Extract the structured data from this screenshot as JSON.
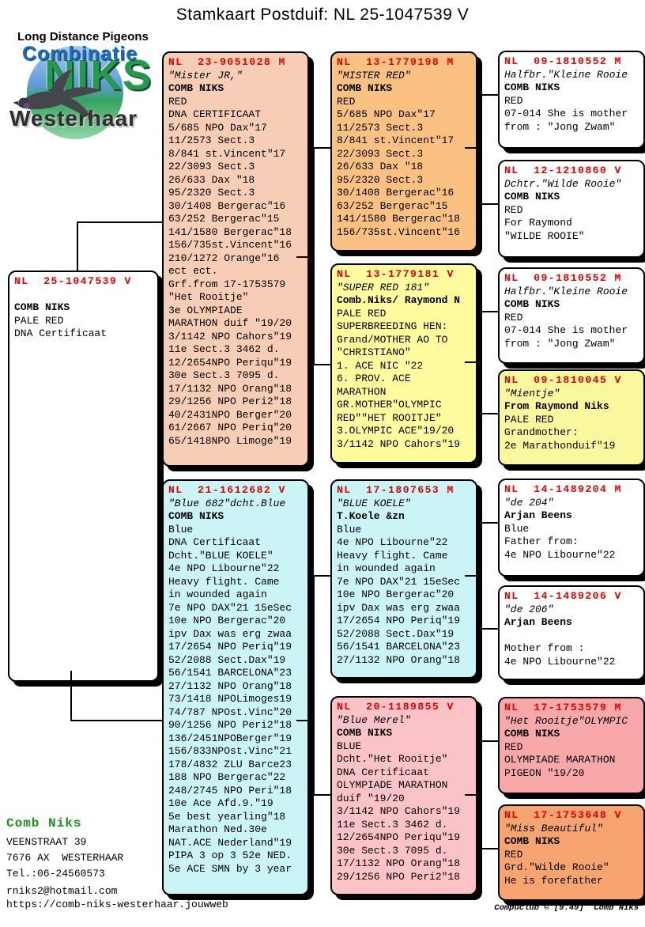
{
  "title": "Stamkaart Postduif: NL  25-1047539 V",
  "logo": {
    "tagline": "Long Distance Pigeons",
    "word1": "Combinatie",
    "word2": "NIKS",
    "word3": "Westerhaar",
    "pigeon_icon": "pigeon-icon"
  },
  "colors": {
    "ring_red": "#dd0000",
    "owner_green": "#1e8f1e",
    "peach": "#f8cdb5",
    "orange": "#fac183",
    "yellow": "#fdfb9e",
    "cyan": "#cbf4f6",
    "pink": "#fbc2c7",
    "salmon": "#f8a8a9",
    "deep_orange": "#f8a470",
    "white": "#ffffff"
  },
  "pedigree": {
    "boxes": [
      {
        "id": "father",
        "ring": "NL  23-9051028 M",
        "bg": "#f8cdb5",
        "lines": [
          {
            "t": "\"Mister JR,\"",
            "s": "i"
          },
          {
            "t": "COMB NIKS",
            "s": "b"
          },
          {
            "t": "RED",
            "s": ""
          },
          {
            "t": "DNA CERTIFICAAT",
            "s": ""
          },
          {
            "t": "5/685 NPO Dax\"17",
            "s": ""
          },
          {
            "t": "11/2573 Sect.3",
            "s": ""
          },
          {
            "t": "8/841 st.Vincent\"17",
            "s": ""
          },
          {
            "t": "22/3093 Sect.3",
            "s": ""
          },
          {
            "t": "26/633 Dax \"18",
            "s": ""
          },
          {
            "t": "95/2320 Sect.3",
            "s": ""
          },
          {
            "t": "30/1408 Bergerac\"16",
            "s": ""
          },
          {
            "t": "63/252 Bergerac\"15",
            "s": ""
          },
          {
            "t": "141/1580 Bergerac\"18",
            "s": ""
          },
          {
            "t": "156/735st.Vincent\"16",
            "s": ""
          },
          {
            "t": "210/1272 Orange\"16",
            "s": ""
          },
          {
            "t": "ect ect.",
            "s": ""
          },
          {
            "t": "Grf.from 17-1753579",
            "s": ""
          },
          {
            "t": "\"Het Rooitje\"",
            "s": ""
          },
          {
            "t": "3e OLYMPIADE",
            "s": ""
          },
          {
            "t": "MARATHON duif \"19/20",
            "s": ""
          },
          {
            "t": "3/1142 NPO Cahors\"19",
            "s": ""
          },
          {
            "t": "11e Sect.3 3462 d.",
            "s": ""
          },
          {
            "t": "12/2654NPO Periqu\"19",
            "s": ""
          },
          {
            "t": "30e Sect.3 7095 d.",
            "s": ""
          },
          {
            "t": "17/1132 NPO Orang\"18",
            "s": ""
          },
          {
            "t": "29/1256 NPO Peri2\"18",
            "s": ""
          },
          {
            "t": "40/2431NPO Berger\"20",
            "s": ""
          },
          {
            "t": "61/2667 NPO Periq\"20",
            "s": ""
          },
          {
            "t": "65/1418NPO Limoge\"19",
            "s": ""
          }
        ]
      },
      {
        "id": "pgf",
        "ring": "NL  13-1779198 M",
        "bg": "#fac183",
        "lines": [
          {
            "t": "\"MISTER RED\"",
            "s": "i"
          },
          {
            "t": "COMB NIKS",
            "s": "b"
          },
          {
            "t": "RED",
            "s": ""
          },
          {
            "t": "5/685 NPO Dax\"17",
            "s": ""
          },
          {
            "t": "11/2573 Sect.3",
            "s": ""
          },
          {
            "t": "8/841 st.Vincent\"17",
            "s": ""
          },
          {
            "t": "22/3093 Sect.3",
            "s": ""
          },
          {
            "t": "26/633 Dax \"18",
            "s": ""
          },
          {
            "t": "95/2320 Sect.3",
            "s": ""
          },
          {
            "t": "30/1408 Bergerac\"16",
            "s": ""
          },
          {
            "t": "63/252 Bergerac\"15",
            "s": ""
          },
          {
            "t": "141/1580 Bergerac\"18",
            "s": ""
          },
          {
            "t": "156/735st.Vincent\"16",
            "s": ""
          }
        ]
      },
      {
        "id": "pgm",
        "ring": "NL  13-1779181 V",
        "bg": "#fdfb9e",
        "lines": [
          {
            "t": "\"SUPER RED 181\"",
            "s": "i"
          },
          {
            "t": "Comb.Niks/ Raymond N",
            "s": "b"
          },
          {
            "t": "PALE RED",
            "s": ""
          },
          {
            "t": "SUPERBREEDING HEN:",
            "s": ""
          },
          {
            "t": "Grand/MOTHER AO TO",
            "s": ""
          },
          {
            "t": "\"CHRISTIANO\"",
            "s": ""
          },
          {
            "t": "1. ACE NIC \"22",
            "s": ""
          },
          {
            "t": "6. PROV. ACE",
            "s": ""
          },
          {
            "t": "MARATHON",
            "s": ""
          },
          {
            "t": "GR.MOTHER\"OLYMPIC",
            "s": ""
          },
          {
            "t": "RED\"\"HET ROOITJE\"",
            "s": ""
          },
          {
            "t": "3.OLYMPIC ACE\"19/20",
            "s": ""
          },
          {
            "t": "3/1142 NPO Cahors\"19",
            "s": ""
          }
        ]
      },
      {
        "id": "subject",
        "ring": "NL  25-1047539 V",
        "bg": "#ffffff",
        "lines": [
          {
            "t": "",
            "s": ""
          },
          {
            "t": "COMB NIKS",
            "s": "b"
          },
          {
            "t": "PALE RED",
            "s": ""
          },
          {
            "t": "DNA Certificaat",
            "s": ""
          }
        ]
      },
      {
        "id": "mother",
        "ring": "NL  21-1612682 V",
        "bg": "#cbf4f6",
        "lines": [
          {
            "t": "\"Blue 682\"dcht.Blue",
            "s": "i"
          },
          {
            "t": "COMB NIKS",
            "s": "b"
          },
          {
            "t": "Blue",
            "s": ""
          },
          {
            "t": "DNA Certificaat",
            "s": ""
          },
          {
            "t": "Dcht.\"BLUE KOELE\"",
            "s": ""
          },
          {
            "t": "4e NPO Libourne\"22",
            "s": ""
          },
          {
            "t": "Heavy flight. Came",
            "s": ""
          },
          {
            "t": "in wounded again",
            "s": ""
          },
          {
            "t": "7e NPO DAX\"21 15eSec",
            "s": ""
          },
          {
            "t": "10e NPO Bergerac\"20",
            "s": ""
          },
          {
            "t": "ipv Dax was erg zwaa",
            "s": ""
          },
          {
            "t": "17/2654 NPO Periq\"19",
            "s": ""
          },
          {
            "t": "52/2088 Sect.Dax\"19",
            "s": ""
          },
          {
            "t": "56/1541 BARCELONA\"23",
            "s": ""
          },
          {
            "t": "27/1132 NPO Orang\"18",
            "s": ""
          },
          {
            "t": "73/1418 NPOLimoges19",
            "s": ""
          },
          {
            "t": "74/787 NPOst.Vinc\"20",
            "s": ""
          },
          {
            "t": "90/1256 NPO Peri2\"18",
            "s": ""
          },
          {
            "t": "136/2451NPOBerger\"19",
            "s": ""
          },
          {
            "t": "156/833NPOst.Vinc\"21",
            "s": ""
          },
          {
            "t": "178/4832 ZLU Barce23",
            "s": ""
          },
          {
            "t": "188 NPO Bergerac\"22",
            "s": ""
          },
          {
            "t": "248/2745 NPO Peri\"18",
            "s": ""
          },
          {
            "t": "10e Ace Afd.9.\"19",
            "s": ""
          },
          {
            "t": "5e best yearling\"18",
            "s": ""
          },
          {
            "t": "Marathon Ned.30e",
            "s": ""
          },
          {
            "t": "NAT.ACE Nederland\"19",
            "s": ""
          },
          {
            "t": "PIPA 3 op 3 52e NED.",
            "s": ""
          },
          {
            "t": "5e ACE SMN by 3 year",
            "s": ""
          }
        ]
      },
      {
        "id": "mgf",
        "ring": "NL  17-1807653 M",
        "bg": "#cbf4f6",
        "lines": [
          {
            "t": "\"BLUE KOELE\"",
            "s": "i"
          },
          {
            "t": "T.Koele &zn",
            "s": "b"
          },
          {
            "t": "Blue",
            "s": ""
          },
          {
            "t": "4e NPO Libourne\"22",
            "s": ""
          },
          {
            "t": "Heavy flight. Came",
            "s": ""
          },
          {
            "t": "in wounded again",
            "s": ""
          },
          {
            "t": "7e NPO DAX\"21 15eSec",
            "s": ""
          },
          {
            "t": "10e NPO Bergerac\"20",
            "s": ""
          },
          {
            "t": "ipv Dax was erg zwaa",
            "s": ""
          },
          {
            "t": "17/2654 NPO Periq\"19",
            "s": ""
          },
          {
            "t": "52/2088 Sect.Dax\"19",
            "s": ""
          },
          {
            "t": "56/1541 BARCELONA\"23",
            "s": ""
          },
          {
            "t": "27/1132 NPO Orang\"18",
            "s": ""
          }
        ]
      },
      {
        "id": "mgm",
        "ring": "NL  20-1189855 V",
        "bg": "#fbc2c7",
        "lines": [
          {
            "t": "\"Blue Merel\"",
            "s": "i"
          },
          {
            "t": "COMB NIKS",
            "s": "b"
          },
          {
            "t": "BLUE",
            "s": ""
          },
          {
            "t": "Dcht.\"Het Rooitje\"",
            "s": ""
          },
          {
            "t": "DNA Certificaat",
            "s": ""
          },
          {
            "t": "OLYMPIADE MARATHON",
            "s": ""
          },
          {
            "t": "duif \"19/20",
            "s": ""
          },
          {
            "t": "3/1142 NPO Cahors\"19",
            "s": ""
          },
          {
            "t": "11e Sect.3 3462 d.",
            "s": ""
          },
          {
            "t": "12/2654NPO Periqu\"19",
            "s": ""
          },
          {
            "t": "30e Sect.3 7095 d.",
            "s": ""
          },
          {
            "t": "17/1132 NPO Orang\"18",
            "s": ""
          },
          {
            "t": "29/1256 NPO Peri2\"18",
            "s": ""
          }
        ]
      },
      {
        "id": "ggp1",
        "ring": "NL  09-1810552 M",
        "bg": "#ffffff",
        "lines": [
          {
            "t": "Halfbr.\"Kleine Rooie",
            "s": "i"
          },
          {
            "t": "COMB NIKS",
            "s": "b"
          },
          {
            "t": "RED",
            "s": ""
          },
          {
            "t": "07-014 She is mother",
            "s": ""
          },
          {
            "t": "from : \"Jong Zwam\"",
            "s": ""
          }
        ]
      },
      {
        "id": "ggp2",
        "ring": "NL  12-1210860 V",
        "bg": "#ffffff",
        "lines": [
          {
            "t": "Dchtr.\"Wilde Rooie\"",
            "s": "i"
          },
          {
            "t": "COMB NIKS",
            "s": "b"
          },
          {
            "t": "RED",
            "s": ""
          },
          {
            "t": "For Raymond",
            "s": ""
          },
          {
            "t": "\"WILDE ROOIE\"",
            "s": ""
          }
        ]
      },
      {
        "id": "ggp3",
        "ring": "NL  09-1810552 M",
        "bg": "#ffffff",
        "lines": [
          {
            "t": "Halfbr.\"Kleine Rooie",
            "s": "i"
          },
          {
            "t": "COMB NIKS",
            "s": "b"
          },
          {
            "t": "RED",
            "s": ""
          },
          {
            "t": "07-014 She is mother",
            "s": ""
          },
          {
            "t": "from : \"Jong Zwam\"",
            "s": ""
          }
        ]
      },
      {
        "id": "ggp4",
        "ring": "NL  09-1810045 V",
        "bg": "#faf89e",
        "lines": [
          {
            "t": "\"Mientje\"",
            "s": "i"
          },
          {
            "t": "From Raymond Niks",
            "s": "b"
          },
          {
            "t": "PALE RED",
            "s": ""
          },
          {
            "t": "Grandmother:",
            "s": ""
          },
          {
            "t": "2e Marathonduif\"19",
            "s": ""
          }
        ]
      },
      {
        "id": "ggp5",
        "ring": "NL  14-1489204 M",
        "bg": "#ffffff",
        "lines": [
          {
            "t": "\"de 204\"",
            "s": "i"
          },
          {
            "t": "Arjan Beens",
            "s": "b"
          },
          {
            "t": "Blue",
            "s": ""
          },
          {
            "t": "Father from:",
            "s": ""
          },
          {
            "t": "4e NPO Libourne\"22",
            "s": ""
          }
        ]
      },
      {
        "id": "ggp6",
        "ring": "NL  14-1489206 V",
        "bg": "#ffffff",
        "lines": [
          {
            "t": "\"de 206\"",
            "s": "i"
          },
          {
            "t": "Arjan Beens",
            "s": "b"
          },
          {
            "t": "",
            "s": ""
          },
          {
            "t": "Mother from :",
            "s": ""
          },
          {
            "t": "4e NPO Libourne\"22",
            "s": ""
          }
        ]
      },
      {
        "id": "ggp7",
        "ring": "NL  17-1753579 M",
        "bg": "#f8a8a9",
        "lines": [
          {
            "t": "\"Het Rooitje\"OLYMPIC",
            "s": "i"
          },
          {
            "t": "COMB NIKS",
            "s": "b"
          },
          {
            "t": "RED",
            "s": ""
          },
          {
            "t": "OLYMPIADE MARATHON",
            "s": ""
          },
          {
            "t": "PIGEON \"19/20",
            "s": ""
          }
        ]
      },
      {
        "id": "ggp8",
        "ring": "NL  17-1753648 V",
        "bg": "#f8a470",
        "lines": [
          {
            "t": "\"Miss Beautiful\"",
            "s": "i"
          },
          {
            "t": "COMB NIKS",
            "s": "b"
          },
          {
            "t": "RED",
            "s": ""
          },
          {
            "t": "Grd.\"Wilde Rooie\"",
            "s": ""
          },
          {
            "t": "He is forefather",
            "s": ""
          }
        ]
      }
    ]
  },
  "footer": {
    "owner": "Comb Niks",
    "address1": "VEENSTRAAT 39",
    "address2": "7676 AX  WESTERHAAR",
    "phone": "Tel.:06-24560573",
    "email": "rniks2@hotmail.com",
    "website": "https://comb-niks-westerhaar.jouwweb",
    "credit": "Compuclub © [9.49]  Comb Niks"
  }
}
